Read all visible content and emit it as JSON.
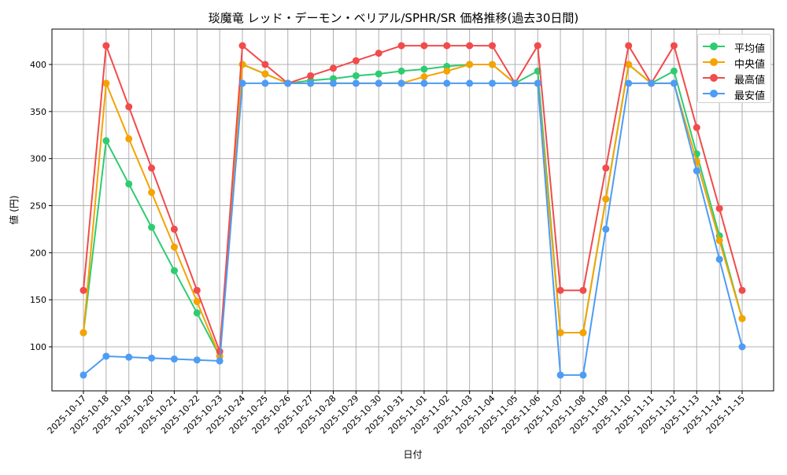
{
  "chart_data": {
    "type": "line",
    "title": "琰魔竜 レッド・デーモン・ベリアル/SPHR/SR 価格推移(過去30日間)",
    "xlabel": "日付",
    "ylabel": "値 (円)",
    "ylim": [
      52,
      437
    ],
    "yticks": [
      100,
      150,
      200,
      250,
      300,
      350,
      400
    ],
    "grid": true,
    "legend_position": "upper right",
    "x": [
      "2025-10-17",
      "2025-10-18",
      "2025-10-19",
      "2025-10-20",
      "2025-10-21",
      "2025-10-22",
      "2025-10-23",
      "2025-10-24",
      "2025-10-25",
      "2025-10-26",
      "2025-10-27",
      "2025-10-28",
      "2025-10-29",
      "2025-10-30",
      "2025-10-31",
      "2025-11-01",
      "2025-11-02",
      "2025-11-03",
      "2025-11-04",
      "2025-11-05",
      "2025-11-06",
      "2025-11-07",
      "2025-11-08",
      "2025-11-09",
      "2025-11-10",
      "2025-11-11",
      "2025-11-12",
      "2025-11-13",
      "2025-11-14",
      "2025-11-15"
    ],
    "series": [
      {
        "name": "平均値",
        "color": "#2ecc71",
        "values": [
          115,
          319,
          273,
          227,
          181,
          136,
          90,
          400,
          390,
          380,
          383,
          385,
          388,
          390,
          393,
          395,
          398,
          400,
          400,
          380,
          393,
          115,
          115,
          257,
          400,
          380,
          393,
          305,
          218,
          130
        ]
      },
      {
        "name": "中央値",
        "color": "#f5a300",
        "values": [
          115,
          380,
          321,
          264,
          206,
          148,
          90,
          400,
          390,
          380,
          380,
          380,
          380,
          380,
          380,
          387,
          393,
          400,
          400,
          380,
          380,
          115,
          115,
          257,
          400,
          380,
          380,
          297,
          213,
          130
        ]
      },
      {
        "name": "最高値",
        "color": "#f24b4b",
        "values": [
          160,
          420,
          355,
          290,
          225,
          160,
          95,
          420,
          400,
          380,
          388,
          396,
          404,
          412,
          420,
          420,
          420,
          420,
          420,
          380,
          420,
          160,
          160,
          290,
          420,
          380,
          420,
          333,
          247,
          160
        ]
      },
      {
        "name": "最安値",
        "color": "#4d9cf5",
        "values": [
          70,
          90,
          89,
          88,
          87,
          86,
          85,
          380,
          380,
          380,
          380,
          380,
          380,
          380,
          380,
          380,
          380,
          380,
          380,
          380,
          380,
          70,
          70,
          225,
          380,
          380,
          380,
          287,
          193,
          100
        ]
      }
    ]
  }
}
